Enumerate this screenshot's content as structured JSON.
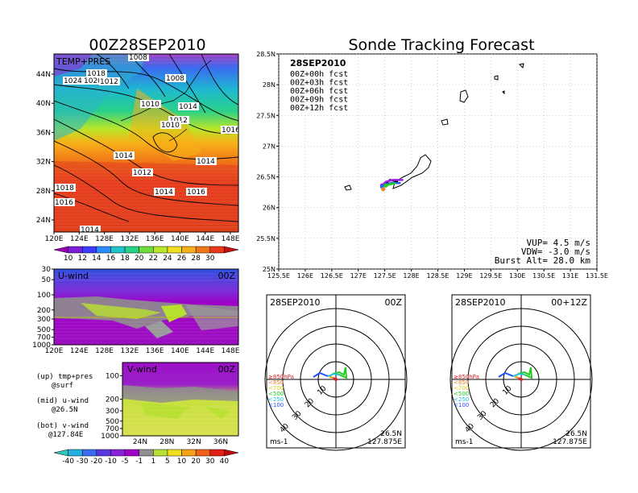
{
  "titles": {
    "left_title": "00Z28SEP2010",
    "right_title": "Sonde Tracking Forecast"
  },
  "map_panel": {
    "label": "TEMP+PRES",
    "x_ticks": [
      "120E",
      "124E",
      "128E",
      "132E",
      "136E",
      "140E",
      "144E",
      "148E"
    ],
    "y_ticks": [
      "24N",
      "28N",
      "32N",
      "36N",
      "40N",
      "44N"
    ],
    "isobar_labels": [
      "1008",
      "1008",
      "1018",
      "1020",
      "1012",
      "1024",
      "1010",
      "1014",
      "1012",
      "1010",
      "1016",
      "1014",
      "1014",
      "1012",
      "1018",
      "1016",
      "1014",
      "1016",
      "1014"
    ],
    "colorbar_labels": [
      "10",
      "12",
      "14",
      "16",
      "18",
      "20",
      "22",
      "24",
      "26",
      "28",
      "30"
    ],
    "colorbar_colors": [
      "#9c00b4",
      "#7a1fd6",
      "#3c3cff",
      "#2a8cff",
      "#1fc4c8",
      "#2ad08a",
      "#6fdc3c",
      "#b8e628",
      "#f0e020",
      "#f8b018",
      "#f07818",
      "#e83818",
      "#c81010"
    ]
  },
  "u_panel": {
    "label": "U-wind",
    "time": "00Z",
    "y_ticks": [
      "30",
      "50",
      "100",
      "200",
      "300",
      "500",
      "700",
      "1000"
    ],
    "x_ticks": [
      "120E",
      "124E",
      "128E",
      "132E",
      "136E",
      "140E",
      "144E",
      "148E"
    ]
  },
  "v_panel": {
    "label": "V-wind",
    "time": "00Z",
    "y_ticks": [
      "100",
      "200",
      "300",
      "500",
      "700",
      "1000"
    ],
    "x_ticks": [
      "24N",
      "28N",
      "32N",
      "36N"
    ]
  },
  "legend_text": {
    "up": "(up) tmp+pres",
    "up2": "@surf",
    "mid": "(mid) u-wind",
    "mid2": "@26.5N",
    "bot": "(bot) v-wind",
    "bot2": "@127.84E"
  },
  "wind_colorbar": {
    "labels": [
      "-40",
      "-30",
      "-20",
      "-10",
      "-5",
      "-1",
      "1",
      "5",
      "10",
      "20",
      "30",
      "40"
    ],
    "colors": [
      "#2ac8b8",
      "#26b0e0",
      "#3a6cf0",
      "#5a38e0",
      "#8a20d8",
      "#a000c8",
      "#909090",
      "#b8e030",
      "#f0e020",
      "#f8a018",
      "#f06018",
      "#e02010",
      "#c00808"
    ]
  },
  "track_panel": {
    "date": "28SEP2010",
    "legend": [
      {
        "text": "00Z+00h fcst",
        "color": "#000000"
      },
      {
        "text": "00Z+03h fcst",
        "color": "#a020f0"
      },
      {
        "text": "00Z+06h fcst",
        "color": "#1e64ff"
      },
      {
        "text": "00Z+09h fcst",
        "color": "#22cc22"
      },
      {
        "text": "00Z+12h fcst",
        "color": "#f08030"
      }
    ],
    "x_ticks": [
      "125.5E",
      "126E",
      "126.5E",
      "127E",
      "127.5E",
      "128E",
      "128.5E",
      "129E",
      "129.5E",
      "130E",
      "130.5E",
      "131E",
      "131.5E"
    ],
    "y_ticks": [
      "25N",
      "25.5N",
      "26N",
      "26.5N",
      "27N",
      "27.5N",
      "28N",
      "28.5N"
    ],
    "vup": "VUP= 4.5 m/s",
    "vdw": "VDW= -3.0 m/s",
    "burst": "Burst Alt= 28.0 km"
  },
  "hodo_left": {
    "date": "28SEP2010",
    "time": "00Z",
    "units": "ms-1",
    "lat": "26.5N",
    "lon": "127.875E",
    "ring_labels": [
      "10",
      "20",
      "30",
      "40"
    ],
    "levels": [
      {
        "text": "≥850hPa",
        "color": "#e02020"
      },
      {
        "text": "<850",
        "color": "#f08030"
      },
      {
        "text": "<700",
        "color": "#e0d020"
      },
      {
        "text": "<500",
        "color": "#22cc22"
      },
      {
        "text": "<250",
        "color": "#20c0e0"
      },
      {
        "text": "<100",
        "color": "#1e50ff"
      }
    ]
  },
  "hodo_right": {
    "date": "28SEP2010",
    "time": "00+12Z",
    "units": "ms-1",
    "lat": "26.5N",
    "lon": "127.875E",
    "ring_labels": [
      "10",
      "20",
      "30",
      "40"
    ],
    "levels": [
      {
        "text": "≥850hPa",
        "color": "#e02020"
      },
      {
        "text": "<850",
        "color": "#f08030"
      },
      {
        "text": "<700",
        "color": "#e0d020"
      },
      {
        "text": "<500",
        "color": "#22cc22"
      },
      {
        "text": "<250",
        "color": "#20c0e0"
      },
      {
        "text": "<100",
        "color": "#1e50ff"
      }
    ]
  },
  "chart_data": [
    {
      "type": "heatmap",
      "title": "00Z28SEP2010",
      "subtitle": "TEMP+PRES",
      "x": [
        "120E",
        "124E",
        "128E",
        "132E",
        "136E",
        "140E",
        "144E",
        "148E"
      ],
      "y": [
        "24N",
        "28N",
        "32N",
        "36N",
        "40N",
        "44N"
      ],
      "colorbar": [
        10,
        12,
        14,
        16,
        18,
        20,
        22,
        24,
        26,
        28,
        30
      ],
      "isobars_hPa": [
        1008,
        1008,
        1018,
        1020,
        1012,
        1024,
        1010,
        1014,
        1012,
        1010,
        1016,
        1014,
        1014,
        1012,
        1018,
        1016,
        1014,
        1016,
        1014
      ]
    },
    {
      "type": "heatmap",
      "title": "U-wind",
      "subtitle": "00Z",
      "x": [
        "120E",
        "124E",
        "128E",
        "132E",
        "136E",
        "140E",
        "144E",
        "148E"
      ],
      "y_hPa": [
        30,
        50,
        100,
        200,
        300,
        500,
        700,
        1000
      ],
      "colorbar": [
        -40,
        -30,
        -20,
        -10,
        -5,
        -1,
        1,
        5,
        10,
        20,
        30,
        40
      ]
    },
    {
      "type": "heatmap",
      "title": "V-wind",
      "subtitle": "00Z",
      "x": [
        "24N",
        "28N",
        "32N",
        "36N"
      ],
      "y_hPa": [
        100,
        200,
        300,
        500,
        700,
        1000
      ],
      "colorbar": [
        -40,
        -30,
        -20,
        -10,
        -5,
        -1,
        1,
        5,
        10,
        20,
        30,
        40
      ]
    },
    {
      "type": "line",
      "title": "Sonde Tracking Forecast",
      "subtitle": "28SEP2010",
      "xlim": [
        125.5,
        131.5
      ],
      "ylim": [
        25,
        28.5
      ],
      "launch": [
        127.875,
        26.5
      ],
      "series": [
        {
          "name": "00Z+00h fcst",
          "color": "#000000",
          "points": [
            [
              127.75,
              26.42
            ],
            [
              127.6,
              26.45
            ],
            [
              127.5,
              26.38
            ]
          ]
        },
        {
          "name": "00Z+03h fcst",
          "color": "#a020f0",
          "points": [
            [
              127.85,
              26.45
            ],
            [
              127.65,
              26.45
            ],
            [
              127.52,
              26.42
            ],
            [
              127.45,
              26.36
            ]
          ]
        },
        {
          "name": "00Z+06h fcst",
          "color": "#1e64ff",
          "points": [
            [
              127.8,
              26.4
            ],
            [
              127.62,
              26.4
            ],
            [
              127.5,
              26.37
            ],
            [
              127.45,
              26.34
            ]
          ]
        },
        {
          "name": "00Z+09h fcst",
          "color": "#22cc22",
          "points": [
            [
              127.7,
              26.4
            ],
            [
              127.6,
              26.38
            ],
            [
              127.52,
              26.36
            ]
          ]
        },
        {
          "name": "00Z+12h fcst",
          "color": "#f08030",
          "points": [
            [
              127.5,
              26.32
            ],
            [
              127.47,
              26.3
            ]
          ]
        }
      ]
    }
  ]
}
